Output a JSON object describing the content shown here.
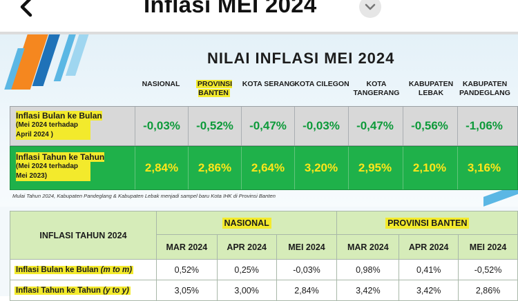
{
  "header": {
    "title": "Inflasi MEI 2024",
    "back_icon": "back-arrow-icon",
    "dropdown_icon": "chevron-down-icon"
  },
  "infographic": {
    "title": "NILAI INFLASI MEI 2024",
    "columns": [
      {
        "label": "NASIONAL",
        "highlight": false
      },
      {
        "label": "PROVINSI BANTEN",
        "highlight": true
      },
      {
        "label": "KOTA SERANG",
        "highlight": false
      },
      {
        "label": "KOTA CILEGON",
        "highlight": false
      },
      {
        "label": "KOTA TANGERANG",
        "highlight": false
      },
      {
        "label": "KABUPATEN LEBAK",
        "highlight": false
      },
      {
        "label": "KABUPATEN PANDEGLANG",
        "highlight": false
      }
    ],
    "rows": [
      {
        "label": "Inflasi Bulan ke Bulan",
        "sub": "(Mei 2024 terhadap April 2024 )",
        "values": [
          "-0,03%",
          "-0,52%",
          "-0,47%",
          "-0,03%",
          "-0,47%",
          "-0,56%",
          "-1,06%"
        ]
      },
      {
        "label": "Inflasi Tahun ke Tahun",
        "sub": "(Mei 2024 terhadap Mei 2023)",
        "values": [
          "2,84%",
          "2,86%",
          "2,64%",
          "3,20%",
          "2,95%",
          "2,10%",
          "3,16%"
        ]
      }
    ],
    "note": "Mulai Tahun 2024, Kabupaten Pandeglang & Kabupaten Lebak menjadi sampel baru Kota IHK di Provinsi Banten",
    "colors": {
      "gray_row": "#d8d8d8",
      "green_row": "#1fb14a",
      "gray_values": "#0e9a3a",
      "green_values": "#ffe61a",
      "highlight": "#f3ea2c"
    }
  },
  "table": {
    "main_header": "INFLASI TAHUN 2024",
    "groups": [
      "NASIONAL",
      "PROVINSI BANTEN"
    ],
    "months": [
      "MAR 2024",
      "APR 2024",
      "MEI 2024",
      "MAR 2024",
      "APR 2024",
      "MEI 2024"
    ],
    "rows": [
      {
        "label": "Inflasi Bulan ke Bulan",
        "unit": "(m to m)",
        "values": [
          "0,52%",
          "0,25%",
          "-0,03%",
          "0,98%",
          "0,41%",
          "-0,52%"
        ]
      },
      {
        "label": "Inflasi Tahun ke Tahun",
        "unit": "(y to y)",
        "values": [
          "3,05%",
          "3,00%",
          "2,84%",
          "3,42%",
          "3,42%",
          "2,86%"
        ]
      }
    ],
    "colors": {
      "header_bg": "#d6ecb9"
    }
  }
}
